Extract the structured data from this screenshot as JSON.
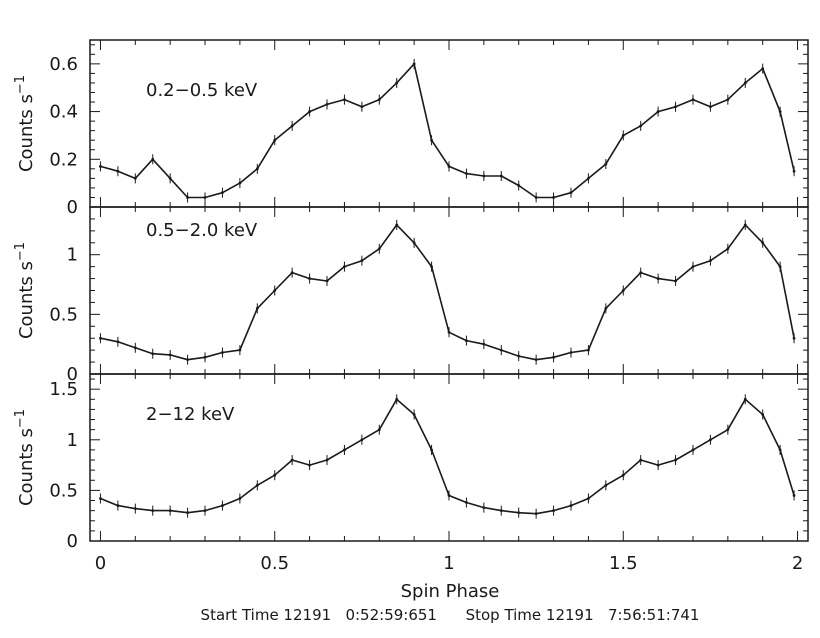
{
  "xaxis": {
    "label": "Spin Phase",
    "ticks": [
      "0",
      "0.5",
      "1",
      "1.5",
      "2"
    ],
    "range": [
      -0.03,
      2.03
    ]
  },
  "footer": {
    "text": "Start Time 12191   0:52:59:651      Stop Time 12191   7:56:51:741"
  },
  "chart_data": [
    {
      "type": "line",
      "band_label": "0.2−0.5 keV",
      "ylabel": "Counts s",
      "ylabel_sup": "−1",
      "ylim": [
        0,
        0.7
      ],
      "yticks": [
        "0",
        "0.2",
        "0.4",
        "0.6"
      ],
      "ytick_values": [
        0,
        0.2,
        0.4,
        0.6
      ],
      "x": [
        0.0,
        0.05,
        0.1,
        0.15,
        0.2,
        0.25,
        0.3,
        0.35,
        0.4,
        0.45,
        0.5,
        0.55,
        0.6,
        0.65,
        0.7,
        0.75,
        0.8,
        0.85,
        0.9,
        0.95,
        1.0,
        1.05,
        1.1,
        1.15,
        1.2,
        1.25,
        1.3,
        1.35,
        1.4,
        1.45,
        1.5,
        1.55,
        1.6,
        1.65,
        1.7,
        1.75,
        1.8,
        1.85,
        1.9,
        1.95,
        1.99
      ],
      "y": [
        0.17,
        0.15,
        0.12,
        0.2,
        0.12,
        0.04,
        0.04,
        0.06,
        0.1,
        0.16,
        0.28,
        0.34,
        0.4,
        0.43,
        0.45,
        0.42,
        0.45,
        0.52,
        0.6,
        0.28,
        0.17,
        0.14,
        0.13,
        0.13,
        0.09,
        0.04,
        0.04,
        0.06,
        0.12,
        0.18,
        0.3,
        0.34,
        0.4,
        0.42,
        0.45,
        0.42,
        0.45,
        0.52,
        0.58,
        0.4,
        0.15
      ]
    },
    {
      "type": "line",
      "band_label": "0.5−2.0 keV",
      "ylabel": "Counts s",
      "ylabel_sup": "−1",
      "ylim": [
        0,
        1.4
      ],
      "yticks": [
        "0",
        "0.5",
        "1"
      ],
      "ytick_values": [
        0,
        0.5,
        1
      ],
      "x": [
        0.0,
        0.05,
        0.1,
        0.15,
        0.2,
        0.25,
        0.3,
        0.35,
        0.4,
        0.45,
        0.5,
        0.55,
        0.6,
        0.65,
        0.7,
        0.75,
        0.8,
        0.85,
        0.9,
        0.95,
        1.0,
        1.05,
        1.1,
        1.15,
        1.2,
        1.25,
        1.3,
        1.35,
        1.4,
        1.45,
        1.5,
        1.55,
        1.6,
        1.65,
        1.7,
        1.75,
        1.8,
        1.85,
        1.9,
        1.95,
        1.99
      ],
      "y": [
        0.3,
        0.27,
        0.22,
        0.17,
        0.16,
        0.12,
        0.14,
        0.18,
        0.2,
        0.55,
        0.7,
        0.85,
        0.8,
        0.78,
        0.9,
        0.95,
        1.05,
        1.25,
        1.1,
        0.9,
        0.35,
        0.28,
        0.25,
        0.2,
        0.15,
        0.12,
        0.14,
        0.18,
        0.2,
        0.55,
        0.7,
        0.85,
        0.8,
        0.78,
        0.9,
        0.95,
        1.05,
        1.25,
        1.1,
        0.9,
        0.3
      ]
    },
    {
      "type": "line",
      "band_label": "2−12 keV",
      "ylabel": "Counts s",
      "ylabel_sup": "−1",
      "ylim": [
        0,
        1.65
      ],
      "yticks": [
        "0",
        "0.5",
        "1",
        "1.5"
      ],
      "ytick_values": [
        0,
        0.5,
        1,
        1.5
      ],
      "x": [
        0.0,
        0.05,
        0.1,
        0.15,
        0.2,
        0.25,
        0.3,
        0.35,
        0.4,
        0.45,
        0.5,
        0.55,
        0.6,
        0.65,
        0.7,
        0.75,
        0.8,
        0.85,
        0.9,
        0.95,
        1.0,
        1.05,
        1.1,
        1.15,
        1.2,
        1.25,
        1.3,
        1.35,
        1.4,
        1.45,
        1.5,
        1.55,
        1.6,
        1.65,
        1.7,
        1.75,
        1.8,
        1.85,
        1.9,
        1.95,
        1.99
      ],
      "y": [
        0.42,
        0.35,
        0.32,
        0.3,
        0.3,
        0.28,
        0.3,
        0.35,
        0.42,
        0.55,
        0.65,
        0.8,
        0.75,
        0.8,
        0.9,
        1.0,
        1.1,
        1.4,
        1.25,
        0.9,
        0.45,
        0.38,
        0.33,
        0.3,
        0.28,
        0.27,
        0.3,
        0.35,
        0.42,
        0.55,
        0.65,
        0.8,
        0.75,
        0.8,
        0.9,
        1.0,
        1.1,
        1.4,
        1.25,
        0.9,
        0.45
      ]
    }
  ]
}
